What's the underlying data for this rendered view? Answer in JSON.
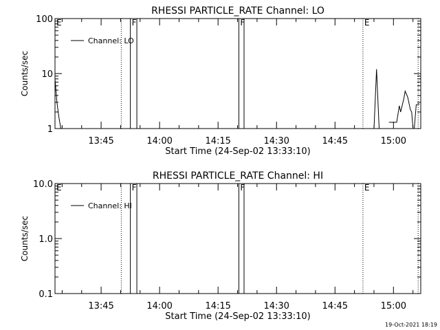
{
  "footer_timestamp": "19-Oct-2021 18:19",
  "chart_data": [
    {
      "type": "line",
      "title": "RHESSI PARTICLE_RATE Channel: LO",
      "xlabel": "Start Time (24-Sep-02 13:33:10)",
      "ylabel": "Counts/sec",
      "y_scale": "log",
      "ylim": [
        1,
        100
      ],
      "y_ticks": [
        {
          "value": 1,
          "label": "1"
        },
        {
          "value": 10,
          "label": "10"
        },
        {
          "value": 100,
          "label": "100"
        }
      ],
      "xlim": [
        "13:33:10",
        "15:07:00"
      ],
      "x_ticks": [
        "13:45",
        "14:00",
        "14:15",
        "14:30",
        "14:45",
        "15:00"
      ],
      "legend": {
        "position": "top-left",
        "entries": [
          {
            "label": "Channel: LO",
            "color": "#000000"
          }
        ]
      },
      "flags": [
        {
          "time": "13:33:10",
          "label": "E",
          "style": "dotted"
        },
        {
          "time": "13:50:10",
          "label": "",
          "style": "dotted"
        },
        {
          "time": "13:52:30",
          "label": "F",
          "style": "solid"
        },
        {
          "time": "13:54:10",
          "label": "",
          "style": "solid"
        },
        {
          "time": "14:20:20",
          "label": "F",
          "style": "solid"
        },
        {
          "time": "14:21:40",
          "label": "",
          "style": "solid"
        },
        {
          "time": "14:52:10",
          "label": "E",
          "style": "dotted"
        },
        {
          "time": "15:06:20",
          "label": "",
          "style": "dotted"
        }
      ],
      "series": [
        {
          "segments": [
            [
              {
                "x": "13:33:10",
                "y": 8.0
              },
              {
                "x": "13:33:40",
                "y": 3.0
              },
              {
                "x": "13:34:10",
                "y": 1.6
              },
              {
                "x": "13:34:40",
                "y": 1.0
              }
            ],
            [
              {
                "x": "14:55:00",
                "y": 1.0
              },
              {
                "x": "14:55:40",
                "y": 12.0
              },
              {
                "x": "14:56:20",
                "y": 1.0
              }
            ],
            [
              {
                "x": "14:58:50",
                "y": 1.3
              },
              {
                "x": "15:00:50",
                "y": 1.3
              },
              {
                "x": "15:01:30",
                "y": 2.6
              },
              {
                "x": "15:01:50",
                "y": 2.0
              },
              {
                "x": "15:02:40",
                "y": 3.5
              },
              {
                "x": "15:03:00",
                "y": 4.8
              },
              {
                "x": "15:03:40",
                "y": 3.7
              },
              {
                "x": "15:04:20",
                "y": 2.2
              },
              {
                "x": "15:04:40",
                "y": 2.0
              },
              {
                "x": "15:05:00",
                "y": 1.0
              }
            ],
            [
              {
                "x": "15:05:20",
                "y": 1.0
              },
              {
                "x": "15:05:50",
                "y": 2.7
              },
              {
                "x": "15:06:40",
                "y": 2.8
              }
            ]
          ]
        }
      ]
    },
    {
      "type": "line",
      "title": "RHESSI PARTICLE_RATE Channel: HI",
      "xlabel": "Start Time (24-Sep-02 13:33:10)",
      "ylabel": "Counts/sec",
      "y_scale": "log",
      "ylim": [
        0.1,
        10
      ],
      "y_ticks": [
        {
          "value": 0.1,
          "label": "0.1"
        },
        {
          "value": 1,
          "label": "1.0"
        },
        {
          "value": 10,
          "label": "10.0"
        }
      ],
      "xlim": [
        "13:33:10",
        "15:07:00"
      ],
      "x_ticks": [
        "13:45",
        "14:00",
        "14:15",
        "14:30",
        "14:45",
        "15:00"
      ],
      "legend": {
        "position": "top-left",
        "entries": [
          {
            "label": "Channel: HI",
            "color": "#000000"
          }
        ]
      },
      "flags": [
        {
          "time": "13:33:10",
          "label": "E",
          "style": "dotted"
        },
        {
          "time": "13:50:10",
          "label": "",
          "style": "dotted"
        },
        {
          "time": "13:52:30",
          "label": "F",
          "style": "solid"
        },
        {
          "time": "13:54:10",
          "label": "",
          "style": "solid"
        },
        {
          "time": "14:20:20",
          "label": "F",
          "style": "solid"
        },
        {
          "time": "14:21:40",
          "label": "",
          "style": "solid"
        },
        {
          "time": "14:52:10",
          "label": "E",
          "style": "dotted"
        },
        {
          "time": "15:06:20",
          "label": "",
          "style": "dotted"
        }
      ],
      "series": [
        {
          "segments": []
        }
      ]
    }
  ]
}
